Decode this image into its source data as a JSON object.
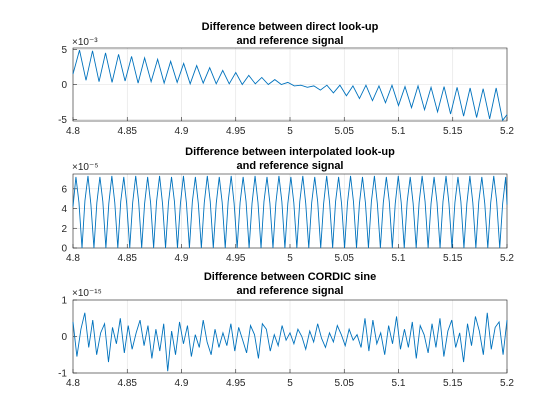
{
  "chart_data": [
    {
      "type": "line",
      "title": [
        "Difference between direct look-up",
        "and reference signal"
      ],
      "xlabel": "",
      "ylabel": "",
      "exponent_label": "×10⁻³",
      "xlim": [
        4.8,
        5.2
      ],
      "ylim": [
        -5.2,
        5.2
      ],
      "y_scale": 0.001,
      "xticks": [
        4.8,
        4.85,
        4.9,
        4.95,
        5,
        5.05,
        5.1,
        5.15,
        5.2
      ],
      "xtick_labels": [
        "4.8",
        "4.85",
        "4.9",
        "4.95",
        "5",
        "5.05",
        "5.1",
        "5.15",
        "5.2"
      ],
      "yticks": [
        -5,
        0,
        5
      ],
      "ytick_labels": [
        "-5",
        "0",
        "5"
      ],
      "grid": true,
      "line_color": "#0072bd",
      "series": [
        {
          "x": [
            4.8,
            4.806,
            4.812,
            4.818,
            4.824,
            4.83,
            4.836,
            4.842,
            4.848,
            4.854,
            4.86,
            4.866,
            4.872,
            4.878,
            4.884,
            4.89,
            4.896,
            4.902,
            4.908,
            4.914,
            4.92,
            4.926,
            4.932,
            4.938,
            4.944,
            4.95,
            4.956,
            4.962,
            4.968,
            4.974,
            4.98,
            4.986,
            4.992,
            4.998,
            5.004,
            5.01,
            5.016,
            5.022,
            5.028,
            5.034,
            5.04,
            5.046,
            5.052,
            5.058,
            5.064,
            5.07,
            5.076,
            5.082,
            5.088,
            5.094,
            5.1,
            5.106,
            5.112,
            5.118,
            5.124,
            5.13,
            5.136,
            5.142,
            5.148,
            5.154,
            5.16,
            5.166,
            5.172,
            5.178,
            5.184,
            5.19,
            5.196,
            5.2
          ],
          "y": [
            1.5,
            4.9,
            0.6,
            4.8,
            0.4,
            4.5,
            0.3,
            4.3,
            0.5,
            4.0,
            0.2,
            3.8,
            0.4,
            3.6,
            0.2,
            3.3,
            0.3,
            3.0,
            0.1,
            2.7,
            0.2,
            2.4,
            0.1,
            2.0,
            0.1,
            1.7,
            0.0,
            1.3,
            0.1,
            1.0,
            0.0,
            0.7,
            0.0,
            0.3,
            -0.2,
            -0.1,
            -0.4,
            -0.2,
            -0.8,
            -0.1,
            -1.2,
            -0.1,
            -1.6,
            -0.2,
            -2.0,
            -0.1,
            -2.3,
            -0.2,
            -2.6,
            -0.1,
            -3.0,
            -0.3,
            -3.3,
            -0.2,
            -3.6,
            -0.4,
            -3.9,
            -0.3,
            -4.2,
            -0.4,
            -4.5,
            -0.5,
            -4.7,
            -0.6,
            -4.9,
            -0.5,
            -5.1,
            -4.3
          ]
        }
      ]
    },
    {
      "type": "line",
      "title": [
        "Difference between interpolated look-up",
        "and reference signal"
      ],
      "xlabel": "",
      "ylabel": "",
      "exponent_label": "×10⁻⁵",
      "xlim": [
        4.8,
        5.2
      ],
      "ylim": [
        0,
        7.5
      ],
      "y_scale": 1e-05,
      "xticks": [
        4.8,
        4.85,
        4.9,
        4.95,
        5,
        5.05,
        5.1,
        5.15,
        5.2
      ],
      "xtick_labels": [
        "4.8",
        "4.85",
        "4.9",
        "4.95",
        "5",
        "5.05",
        "5.1",
        "5.15",
        "5.2"
      ],
      "yticks": [
        0,
        2,
        4,
        6
      ],
      "ytick_labels": [
        "0",
        "2",
        "4",
        "6"
      ],
      "grid": true,
      "line_color": "#0072bd",
      "series": [
        {
          "x": [
            4.8,
            4.8027,
            4.8055,
            4.8083,
            4.811,
            4.8138,
            4.8165,
            4.8193,
            4.822,
            4.8248,
            4.8275,
            4.8303,
            4.833,
            4.8358,
            4.8385,
            4.8413,
            4.844,
            4.8468,
            4.8495,
            4.8523,
            4.855,
            4.8578,
            4.8605,
            4.8633,
            4.866,
            4.8688,
            4.8715,
            4.8743,
            4.877,
            4.8798,
            4.8825,
            4.8853,
            4.888,
            4.8908,
            4.8935,
            4.8963,
            4.899,
            4.9018,
            4.9045,
            4.9073,
            4.91,
            4.9128,
            4.9155,
            4.9183,
            4.921,
            4.9238,
            4.9265,
            4.9293,
            4.932,
            4.9348,
            4.9375,
            4.9403,
            4.943,
            4.9458,
            4.9485,
            4.9513,
            4.954,
            4.9568,
            4.9595,
            4.9623,
            4.965,
            4.9678,
            4.9705,
            4.9733,
            4.976,
            4.9788,
            4.9815,
            4.9843,
            4.987,
            4.9898,
            4.9925,
            4.9953,
            4.998,
            5.0008,
            5.0035,
            5.0063,
            5.009,
            5.0118,
            5.0145,
            5.0173,
            5.02,
            5.0228,
            5.0255,
            5.0283,
            5.031,
            5.0338,
            5.0365,
            5.0393,
            5.042,
            5.0448,
            5.0475,
            5.0503,
            5.053,
            5.0558,
            5.0585,
            5.0613,
            5.064,
            5.0668,
            5.0695,
            5.0723,
            5.075,
            5.0778,
            5.0805,
            5.0833,
            5.086,
            5.0888,
            5.0915,
            5.0943,
            5.097,
            5.0998,
            5.1025,
            5.1053,
            5.108,
            5.1108,
            5.1135,
            5.1163,
            5.119,
            5.1218,
            5.1245,
            5.1273,
            5.13,
            5.1328,
            5.1355,
            5.1383,
            5.141,
            5.1438,
            5.1465,
            5.1493,
            5.152,
            5.1548,
            5.1575,
            5.1603,
            5.163,
            5.1658,
            5.1685,
            5.1713,
            5.174,
            5.1768,
            5.1795,
            5.1823,
            5.185,
            5.1878,
            5.1905,
            5.1933,
            5.196,
            5.1988,
            5.2
          ],
          "y": [
            4.2,
            7.2,
            4.6,
            0.0,
            4.8,
            7.3,
            4.4,
            0.0,
            4.6,
            7.2,
            4.7,
            0.0,
            4.5,
            7.3,
            4.6,
            0.0,
            4.7,
            7.2,
            4.5,
            0.0,
            4.6,
            7.3,
            4.7,
            0.0,
            4.5,
            7.2,
            4.6,
            0.0,
            4.7,
            7.3,
            4.5,
            0.0,
            4.6,
            7.2,
            4.7,
            0.0,
            4.5,
            7.3,
            4.6,
            0.0,
            4.7,
            7.2,
            4.5,
            0.0,
            4.6,
            7.3,
            4.7,
            0.0,
            4.5,
            7.2,
            4.6,
            0.0,
            4.7,
            7.3,
            4.5,
            0.0,
            4.6,
            7.2,
            4.7,
            0.0,
            4.5,
            7.3,
            4.6,
            0.0,
            4.7,
            7.2,
            4.5,
            0.0,
            4.6,
            7.3,
            4.7,
            0.0,
            4.5,
            7.2,
            4.6,
            0.0,
            4.7,
            7.3,
            4.5,
            0.0,
            4.6,
            7.2,
            4.7,
            0.0,
            4.5,
            7.3,
            4.6,
            0.0,
            4.7,
            7.2,
            4.5,
            0.0,
            4.6,
            7.3,
            4.7,
            0.0,
            4.5,
            7.2,
            4.6,
            0.0,
            4.7,
            7.3,
            4.5,
            0.0,
            4.6,
            7.2,
            4.7,
            0.0,
            4.5,
            7.3,
            4.6,
            0.0,
            4.7,
            7.2,
            4.5,
            0.0,
            4.6,
            7.3,
            4.7,
            0.0,
            4.5,
            7.2,
            4.6,
            0.0,
            4.7,
            7.3,
            4.5,
            0.0,
            4.6,
            7.2,
            4.7,
            0.0,
            4.5,
            7.3,
            4.6,
            0.0,
            4.7,
            7.2,
            4.5,
            0.0,
            4.6,
            7.3,
            4.7,
            0.0,
            4.5,
            7.2,
            4.4
          ]
        }
      ]
    },
    {
      "type": "line",
      "title": [
        "Difference between CORDIC sine",
        "and reference signal"
      ],
      "xlabel": "",
      "ylabel": "",
      "exponent_label": "×10⁻¹⁵",
      "xlim": [
        4.8,
        5.2
      ],
      "ylim": [
        -1,
        1
      ],
      "y_scale": 1e-15,
      "xticks": [
        4.8,
        4.85,
        4.9,
        4.95,
        5,
        5.05,
        5.1,
        5.15,
        5.2
      ],
      "xtick_labels": [
        "4.8",
        "4.85",
        "4.9",
        "4.95",
        "5",
        "5.05",
        "5.1",
        "5.15",
        "5.2"
      ],
      "yticks": [
        -1,
        0,
        1
      ],
      "ytick_labels": [
        "-1",
        "0",
        "1"
      ],
      "grid": true,
      "line_color": "#0072bd",
      "series": [
        {
          "x": [
            4.8,
            4.8036,
            4.8073,
            4.8109,
            4.8145,
            4.8182,
            4.8218,
            4.8255,
            4.8291,
            4.8327,
            4.8364,
            4.84,
            4.8436,
            4.8473,
            4.8509,
            4.8545,
            4.8582,
            4.8618,
            4.8655,
            4.8691,
            4.8727,
            4.8764,
            4.88,
            4.8836,
            4.8873,
            4.8909,
            4.8945,
            4.8982,
            4.9018,
            4.9055,
            4.9091,
            4.9127,
            4.9164,
            4.92,
            4.9236,
            4.9273,
            4.9309,
            4.9345,
            4.9382,
            4.9418,
            4.9455,
            4.9491,
            4.9527,
            4.9564,
            4.96,
            4.9636,
            4.9673,
            4.9709,
            4.9745,
            4.9782,
            4.9818,
            4.9855,
            4.9891,
            4.9927,
            4.9964,
            5.0,
            5.0036,
            5.0073,
            5.0109,
            5.0145,
            5.0182,
            5.0218,
            5.0255,
            5.0291,
            5.0327,
            5.0364,
            5.04,
            5.0436,
            5.0473,
            5.0509,
            5.0545,
            5.0582,
            5.0618,
            5.0655,
            5.0691,
            5.0727,
            5.0764,
            5.08,
            5.0836,
            5.0873,
            5.0909,
            5.0945,
            5.0982,
            5.1018,
            5.1055,
            5.1091,
            5.1127,
            5.1164,
            5.12,
            5.1236,
            5.1273,
            5.1309,
            5.1345,
            5.1382,
            5.1418,
            5.1455,
            5.1491,
            5.1527,
            5.1564,
            5.16,
            5.1636,
            5.1673,
            5.1709,
            5.1745,
            5.1782,
            5.1818,
            5.1855,
            5.1891,
            5.1927,
            5.1964,
            5.2
          ],
          "y": [
            0.4,
            -0.55,
            0.2,
            0.65,
            -0.3,
            0.45,
            -0.5,
            0.1,
            0.35,
            -0.7,
            0.25,
            -0.2,
            0.5,
            -0.45,
            0.3,
            -0.35,
            0.1,
            0.45,
            -0.25,
            0.3,
            -0.6,
            0.2,
            -0.4,
            0.35,
            -0.95,
            0.15,
            -0.5,
            0.4,
            -0.2,
            0.3,
            -0.55,
            0.05,
            -0.3,
            0.45,
            -0.15,
            -0.5,
            0.2,
            -0.3,
            0.1,
            -0.25,
            0.35,
            -0.4,
            0.25,
            -0.1,
            -0.45,
            0.3,
            0.05,
            -0.6,
            0.35,
            0.2,
            -0.4,
            0.05,
            -0.25,
            0.3,
            -0.1,
            0.1,
            -0.2,
            0.2,
            0.0,
            -0.35,
            0.15,
            -0.15,
            0.35,
            -0.05,
            -0.3,
            0.1,
            -0.15,
            0.3,
            0.05,
            -0.25,
            0.2,
            -0.1,
            0.05,
            -0.3,
            0.5,
            -0.4,
            0.45,
            -0.2,
            0.1,
            -0.5,
            0.3,
            -0.2,
            0.55,
            -0.35,
            0.2,
            -0.3,
            0.4,
            -0.6,
            0.3,
            0.05,
            -0.45,
            0.35,
            -0.3,
            0.5,
            -0.55,
            0.15,
            0.45,
            -0.3,
            0.1,
            -0.7,
            0.35,
            -0.25,
            0.55,
            0.15,
            -0.5,
            0.65,
            -0.35,
            0.25,
            0.4,
            -0.5,
            0.45
          ]
        }
      ]
    }
  ]
}
